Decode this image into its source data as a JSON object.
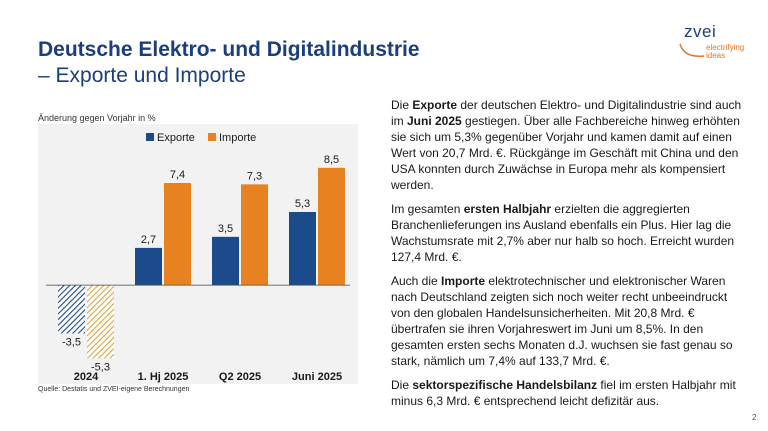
{
  "header": {
    "title_line1": "Deutsche Elektro- und Digitalindustrie",
    "title_line2": "– Exporte und Importe"
  },
  "logo": {
    "word": "zvei",
    "tagline_1": "electrifying",
    "tagline_2": "ideas"
  },
  "colors": {
    "exports": "#1b4b8a",
    "imports": "#e8811f",
    "title": "#1b3f7a",
    "panel": "#f2f2f2"
  },
  "chart_data": {
    "type": "bar",
    "ylabel": "Änderung gegen Vorjahr in %",
    "categories": [
      "2024",
      "1. Hj 2025",
      "Q2 2025",
      "Juni 2025"
    ],
    "series": [
      {
        "name": "Exporte",
        "values": [
          -3.5,
          2.7,
          3.5,
          5.3
        ],
        "labels": [
          "-3,5",
          "2,7",
          "3,5",
          "5,3"
        ]
      },
      {
        "name": "Importe",
        "values": [
          -5.3,
          7.4,
          7.3,
          8.5
        ],
        "labels": [
          "-5,3",
          "7,4",
          "7,3",
          "8,5"
        ]
      }
    ],
    "hatched_category": "2024",
    "ylim": [
      -6,
      9.5
    ],
    "legend": "top",
    "grid": false
  },
  "source": "Quelle: Destatis und ZVEI-eigene Berechnungen",
  "text": {
    "p1": [
      {
        "t": "Die ",
        "b": false
      },
      {
        "t": "Exporte",
        "b": true
      },
      {
        "t": " der deutschen Elektro- und Digitalindustrie sind auch im ",
        "b": false
      },
      {
        "t": "Juni 2025",
        "b": true
      },
      {
        "t": " gestiegen. Über alle Fachbereiche hinweg erhöhten sie sich um 5,3% gegenüber Vorjahr und kamen damit auf einen Wert von 20,7 Mrd. €. Rückgänge im Geschäft mit China und den USA konnten durch Zuwächse in Europa mehr als kompensiert werden.",
        "b": false
      }
    ],
    "p2": [
      {
        "t": "Im gesamten ",
        "b": false
      },
      {
        "t": "ersten Halbjahr",
        "b": true
      },
      {
        "t": " erzielten die aggregierten Branchenlieferungen ins Ausland ebenfalls ein Plus. Hier lag die Wachstumsrate mit 2,7% aber nur halb so hoch. Erreicht wurden 127,4 Mrd. €.",
        "b": false
      }
    ],
    "p3": [
      {
        "t": "Auch die ",
        "b": false
      },
      {
        "t": "Importe",
        "b": true
      },
      {
        "t": " elektrotechnischer und elektronischer Waren nach Deutschland zeigten sich noch weiter recht unbeeindruckt von den globalen Handelsunsicherheiten. Mit 20,8 Mrd. € übertrafen sie ihren Vorjahreswert im Juni um 8,5%. In den gesamten ersten sechs Monaten d.J. wuchsen sie fast genau so stark, nämlich um 7,4% auf 133,7 Mrd. €.",
        "b": false
      }
    ],
    "p4": [
      {
        "t": "Die ",
        "b": false
      },
      {
        "t": "sektorspezifische Handelsbilanz",
        "b": true
      },
      {
        "t": " fiel im ersten Halbjahr mit minus 6,3 Mrd. € entsprechend leicht defizitär aus.",
        "b": false
      }
    ]
  },
  "page_number": "2"
}
